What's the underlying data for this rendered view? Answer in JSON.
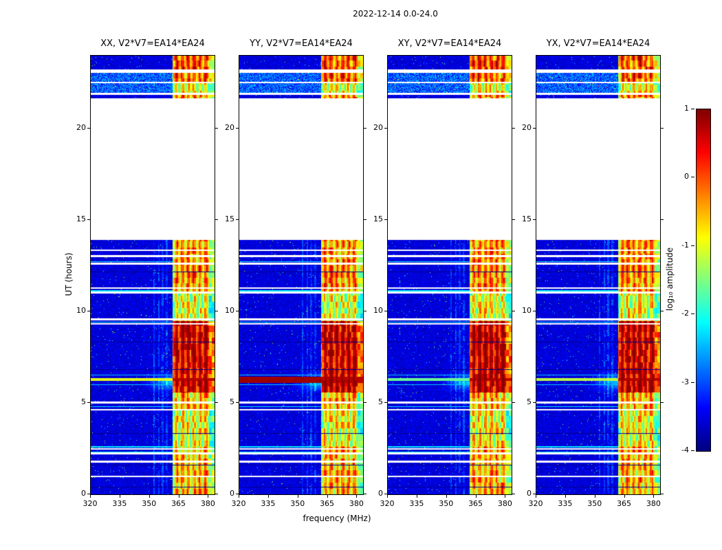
{
  "chart_data": {
    "type": "heatmap",
    "title": "2022-12-14 0.0-24.0",
    "xlabel": "frequency (MHz)",
    "ylabel": "UT (hours)",
    "x_range": [
      320,
      383
    ],
    "y_range": [
      0,
      24
    ],
    "x_ticks": [
      320,
      335,
      350,
      365,
      380
    ],
    "y_ticks": [
      0,
      5,
      10,
      15,
      20
    ],
    "panels": [
      {
        "corr": "XX",
        "title": "XX, V2*V7=EA14*EA24",
        "burst_level": -1.0,
        "burst_width": 0.07
      },
      {
        "corr": "YY",
        "title": "YY, V2*V7=EA14*EA24",
        "burst_level": 0.85,
        "burst_width": 0.17
      },
      {
        "corr": "XY",
        "title": "XY, V2*V7=EA14*EA24",
        "burst_level": -1.6,
        "burst_width": 0.07
      },
      {
        "corr": "YX",
        "title": "YX, V2*V7=EA14*EA24",
        "burst_level": -1.2,
        "burst_width": 0.08
      }
    ],
    "colorbar": {
      "label": "log₁₀ amplitude",
      "ticks": [
        1,
        0,
        -1,
        -2,
        -3,
        -4
      ],
      "vmin": -4,
      "vmax": 1,
      "cmap": "jet"
    },
    "data_time_intervals": [
      [
        0,
        13.92
      ],
      [
        21.67,
        21.88
      ],
      [
        21.97,
        22.52
      ],
      [
        22.58,
        23.07
      ],
      [
        23.25,
        24.0
      ]
    ],
    "gap_times": [
      [
        0.95,
        1.05
      ],
      [
        1.75,
        1.85
      ],
      [
        2.2,
        2.3
      ],
      [
        2.45,
        2.55
      ],
      [
        4.6,
        4.7
      ],
      [
        5.0,
        5.1
      ],
      [
        9.3,
        9.4
      ],
      [
        9.55,
        9.65
      ],
      [
        11.0,
        11.1
      ],
      [
        11.25,
        11.35
      ],
      [
        12.6,
        12.7
      ],
      [
        13.0,
        13.1
      ],
      [
        13.35,
        13.42
      ]
    ],
    "rfi_band_mhz": [
      361.5,
      383
    ],
    "rfi_stripe_centers_mhz": [
      363.5,
      366.5,
      369.5,
      372.5,
      375.5,
      378.5
    ],
    "rfi_intensity_profile": [
      [
        0,
        2.6,
        0.9
      ],
      [
        2.6,
        4.6,
        0.55
      ],
      [
        4.6,
        5.6,
        0.85
      ],
      [
        5.6,
        9.5,
        1.6
      ],
      [
        9.5,
        11.0,
        0.5
      ],
      [
        11.0,
        13.92,
        1.05
      ],
      [
        21.67,
        21.88,
        1.0
      ],
      [
        21.97,
        22.6,
        0.5
      ],
      [
        22.6,
        23.07,
        1.2
      ],
      [
        23.25,
        24.0,
        1.3
      ]
    ],
    "burst_time_hours": 6.3,
    "haze": {
      "t": [
        5.55,
        6.75
      ],
      "f": [
        346,
        361.5
      ],
      "level": 1.25
    },
    "faint_vertical_lines_mhz": [
      352.0,
      354.5,
      356.5,
      358.5
    ],
    "cyan_line_times": [
      2.33,
      2.62,
      4.82,
      9.43,
      11.15,
      12.75
    ],
    "dark_line_times": [
      0.4,
      1.6,
      3.35,
      6.85,
      8.35,
      12.2
    ],
    "bg_boost_intervals": [
      [
        21.97,
        23.07,
        0.85
      ]
    ]
  }
}
